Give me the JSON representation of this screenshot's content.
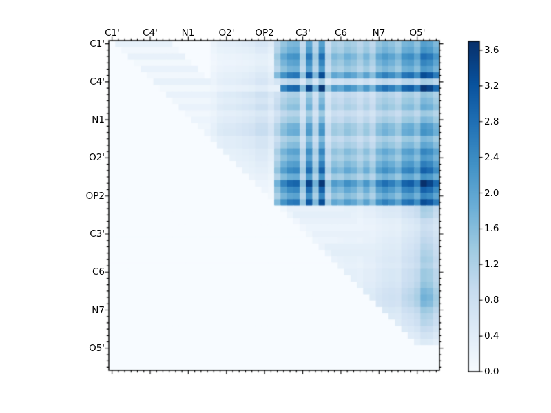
{
  "figure": {
    "background": "#ffffff",
    "title": ""
  },
  "chart_data": {
    "type": "heatmap",
    "title": "",
    "xlabel": "",
    "ylabel": "",
    "n": 52,
    "x_tick_labels": [
      "C1'",
      "C4'",
      "N1",
      "O2'",
      "OP2",
      "C3'",
      "C6",
      "N7",
      "O5'"
    ],
    "y_tick_labels": [
      "C1'",
      "C4'",
      "N1",
      "O2'",
      "OP2",
      "C3'",
      "C6",
      "N7",
      "O5'"
    ],
    "tick_label_indices": [
      0,
      6,
      12,
      18,
      24,
      30,
      36,
      42,
      48
    ],
    "x_axis_side": "top",
    "y_axis_side": "left",
    "grid": false,
    "vmin": 0.0,
    "vmax": 3.7,
    "colormap": {
      "name": "Blues",
      "stops": [
        [
          0.0,
          "#f7fbff"
        ],
        [
          0.125,
          "#deebf7"
        ],
        [
          0.25,
          "#c6dbef"
        ],
        [
          0.375,
          "#9ecae1"
        ],
        [
          0.5,
          "#6baed6"
        ],
        [
          0.625,
          "#4292c6"
        ],
        [
          0.75,
          "#2171b5"
        ],
        [
          0.875,
          "#08519c"
        ],
        [
          1.0,
          "#08306b"
        ]
      ]
    },
    "colorbar": {
      "tick_values": [
        0.0,
        0.4,
        0.8,
        1.2,
        1.6,
        2.0,
        2.4,
        2.8,
        3.2,
        3.6
      ],
      "tick_labels": [
        "0.0",
        "0.4",
        "0.8",
        "1.2",
        "1.6",
        "2.0",
        "2.4",
        "2.8",
        "3.2",
        "3.6"
      ],
      "label_side": "right"
    },
    "matrix": {
      "description": "52x52 strictly-upper-triangular matrix; values below reconstruct the pixel pattern",
      "default": 0.0,
      "upper_triangle_only": true,
      "blocks": [
        {
          "name": "main-dark-block",
          "type": "outer",
          "rows": [
            0,
            25
          ],
          "cols": [
            26,
            51
          ],
          "row_weights": [
            2.1,
            2.3,
            2.8,
            2.5,
            2.2,
            3.3,
            1.3,
            3.6,
            1.5,
            1.7,
            1.9,
            1.4,
            1.7,
            2.2,
            2.3,
            1.7,
            2.0,
            2.5,
            2.2,
            2.6,
            3.0,
            2.3,
            3.6,
            3.0,
            2.5,
            3.3
          ],
          "col_weights": [
            0.5,
            0.7,
            0.8,
            0.82,
            0.45,
            0.95,
            0.5,
            1.0,
            0.4,
            0.6,
            0.55,
            0.65,
            0.6,
            0.5,
            0.62,
            0.48,
            0.7,
            0.78,
            0.72,
            0.62,
            0.82,
            0.85,
            0.72,
            1.0,
            0.95,
            0.8
          ]
        },
        {
          "name": "upper-left-light-band",
          "type": "outer",
          "rows": [
            0,
            25
          ],
          "cols": [
            16,
            25
          ],
          "row_weights": [
            0.75,
            0.6,
            0.45,
            0.4,
            0.5,
            0.65,
            0.75,
            0.5,
            0.95,
            0.8,
            1.0,
            0.7,
            0.85,
            1.05,
            1.1,
            0.8,
            0.8,
            0.65,
            0.6,
            0.5,
            0.45,
            0.35,
            0.25,
            0.2,
            0.15,
            0.1
          ],
          "col_weights": [
            0.3,
            0.45,
            0.5,
            0.5,
            0.55,
            0.6,
            0.65,
            0.8,
            0.8,
            0.6
          ]
        },
        {
          "name": "upper-left-diagonal-stripes",
          "type": "diag_stripes",
          "rows": [
            0,
            15
          ],
          "offsets": [
            1,
            9
          ],
          "row_values": [
            0.3,
            0.12,
            0.28,
            0.1,
            0.25,
            0.12,
            0.3,
            0.1,
            0.25,
            0.15,
            0.25,
            0.12,
            0.2,
            0.15,
            0.2,
            0.1
          ]
        },
        {
          "name": "lower-right-band",
          "type": "outer",
          "rows": [
            26,
            47
          ],
          "cols": [
            26,
            51
          ],
          "row_weights": [
            1.3,
            1.2,
            0.9,
            0.8,
            0.9,
            1.0,
            1.1,
            1.2,
            1.3,
            1.2,
            1.4,
            1.4,
            1.5,
            1.7,
            1.8,
            1.7,
            1.4,
            1.2,
            1.1,
            0.9,
            0.7,
            0.5
          ],
          "col_weights": [
            0.06,
            0.1,
            0.15,
            0.15,
            0.17,
            0.17,
            0.18,
            0.2,
            0.2,
            0.2,
            0.22,
            0.25,
            0.25,
            0.22,
            0.28,
            0.28,
            0.35,
            0.4,
            0.42,
            0.4,
            0.55,
            0.6,
            0.7,
            1.0,
            0.95,
            0.75
          ]
        },
        {
          "name": "lower-right-diagonal-stripes",
          "type": "diag_stripes",
          "rows": [
            26,
            35
          ],
          "offsets": [
            2,
            10
          ],
          "row_values": [
            0.28,
            0.35,
            0.28,
            0.2,
            0.28,
            0.18,
            0.35,
            0.38,
            0.3,
            0.25
          ]
        }
      ],
      "overrides": [
        [
          7,
          26,
          0.3
        ],
        [
          22,
          49,
          3.7
        ],
        [
          0,
          2,
          0.3
        ],
        [
          0,
          3,
          0.3
        ]
      ]
    }
  }
}
